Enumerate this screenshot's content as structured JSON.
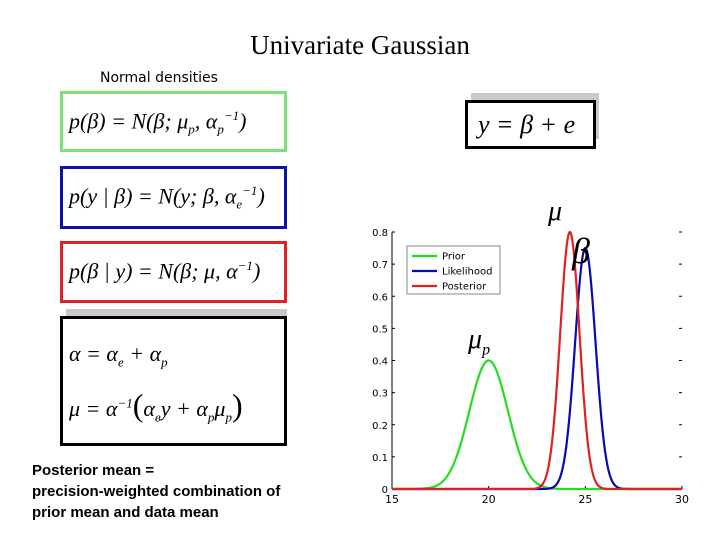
{
  "slide": {
    "title": "Univariate Gaussian",
    "subtitle": "Normal densities",
    "equations": {
      "prior": "p(β) = N(β; μp, αp⁻¹)",
      "likelihood": "p(y | β) = N(y; β, αe⁻¹)",
      "posterior": "p(β | y) = N(β; μ, α⁻¹)",
      "precision": "α = αe + αp",
      "mean": "μ = α⁻¹(αe y + αp μp)",
      "model": "y = β + e"
    },
    "caption": [
      "Posterior mean =",
      "precision-weighted combination of",
      "prior mean and data mean"
    ],
    "annotations": {
      "mu": "μ",
      "beta": "β",
      "mu_p": "μp"
    }
  },
  "chart_data": {
    "type": "line",
    "xlim": [
      15,
      30
    ],
    "ylim": [
      0,
      0.8
    ],
    "xticks": [
      15,
      20,
      25,
      30
    ],
    "yticks": [
      0,
      0.1,
      0.2,
      0.3,
      0.4,
      0.5,
      0.6,
      0.7,
      0.8
    ],
    "grid": false,
    "legend_position": "top-left",
    "series": [
      {
        "name": "Prior",
        "color": "#22dd22",
        "mean": 20,
        "sd": 1.0,
        "peak": 0.4
      },
      {
        "name": "Likelihood",
        "color": "#0a0ab0",
        "mean": 25,
        "sd": 0.53,
        "peak": 0.75
      },
      {
        "name": "Posterior",
        "color": "#dd2222",
        "mean": 24.2,
        "sd": 0.5,
        "peak": 0.8
      }
    ]
  }
}
